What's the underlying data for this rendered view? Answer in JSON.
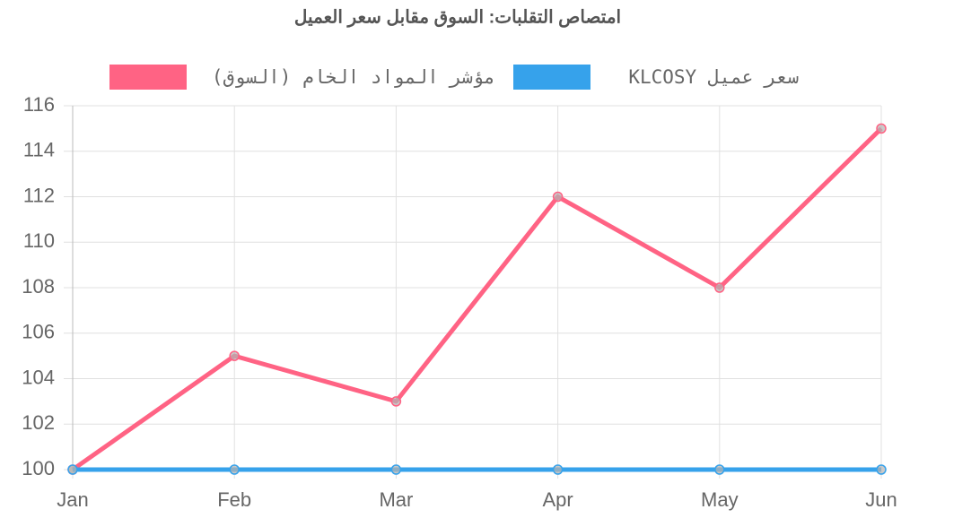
{
  "chart_data": {
    "type": "line",
    "title": "امتصاص التقلبات: السوق مقابل سعر العميل",
    "categories": [
      "Jan",
      "Feb",
      "Mar",
      "Apr",
      "May",
      "Jun"
    ],
    "series": [
      {
        "name": "مؤشر المواد الخام (السوق)",
        "color": "#ff6384",
        "values": [
          100,
          105,
          103,
          112,
          108,
          115
        ]
      },
      {
        "name": "سعر عميل KLCOSY",
        "color": "#36a2eb",
        "values": [
          100,
          100,
          100,
          100,
          100,
          100
        ]
      }
    ],
    "ylim": [
      100,
      116
    ],
    "yticks": [
      100,
      102,
      104,
      106,
      108,
      110,
      112,
      114,
      116
    ],
    "grid": true,
    "legend": "top"
  }
}
